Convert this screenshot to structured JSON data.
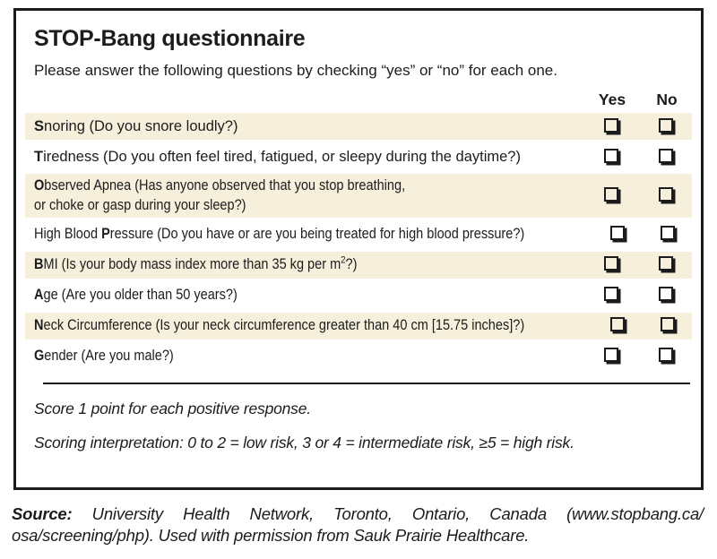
{
  "panel": {
    "title": "STOP-Bang questionnaire",
    "subtitle": "Please answer the following questions by checking “yes” or “no” for each one.",
    "col_yes": "Yes",
    "col_no": "No"
  },
  "rows": [
    {
      "pre": "",
      "bold": "S",
      "mid": "noring (Do you snore loudly?)",
      "sup": "",
      "post": "",
      "line2": ""
    },
    {
      "pre": "",
      "bold": "T",
      "mid": "iredness (Do you often feel tired, fatigued, or sleepy during the daytime?)",
      "sup": "",
      "post": "",
      "line2": ""
    },
    {
      "pre": "",
      "bold": "O",
      "mid": "bserved Apnea (Has anyone observed that you stop breathing,",
      "sup": "",
      "post": "",
      "line2": "or choke or gasp during your sleep?)"
    },
    {
      "pre": "High Blood ",
      "bold": "P",
      "mid": "ressure (Do you have or are you being treated for high blood pressure?)",
      "sup": "",
      "post": "",
      "line2": ""
    },
    {
      "pre": "",
      "bold": "B",
      "mid": "MI (Is your body mass index more than 35 kg per m",
      "sup": "2",
      "post": "?)",
      "line2": ""
    },
    {
      "pre": "",
      "bold": "A",
      "mid": "ge (Are you older than 50 years?)",
      "sup": "",
      "post": "",
      "line2": ""
    },
    {
      "pre": "",
      "bold": "N",
      "mid": "eck Circumference (Is your neck circumference greater than 40 cm [15.75 inches]?)",
      "sup": "",
      "post": "",
      "line2": ""
    },
    {
      "pre": "",
      "bold": "G",
      "mid": "ender (Are you male?)",
      "sup": "",
      "post": "",
      "line2": ""
    }
  ],
  "checkbox_state": "unchecked",
  "footer": {
    "score_note": "Score 1 point for each positive response.",
    "interpretation": "Scoring interpretation: 0 to 2 = low risk, 3 or 4 = intermediate risk, ≥5 = high risk."
  },
  "source": {
    "label": "Source:",
    "line1_rest": " University Health Network, Toronto, Ontario, Canada (www.stopbang.ca/",
    "line2": "osa/screening/php). Used with permission from Sauk Prairie Healthcare."
  },
  "colors": {
    "row_shade": "#f5efdb",
    "border": "#1c1c1c",
    "text": "#1c1c1c"
  }
}
